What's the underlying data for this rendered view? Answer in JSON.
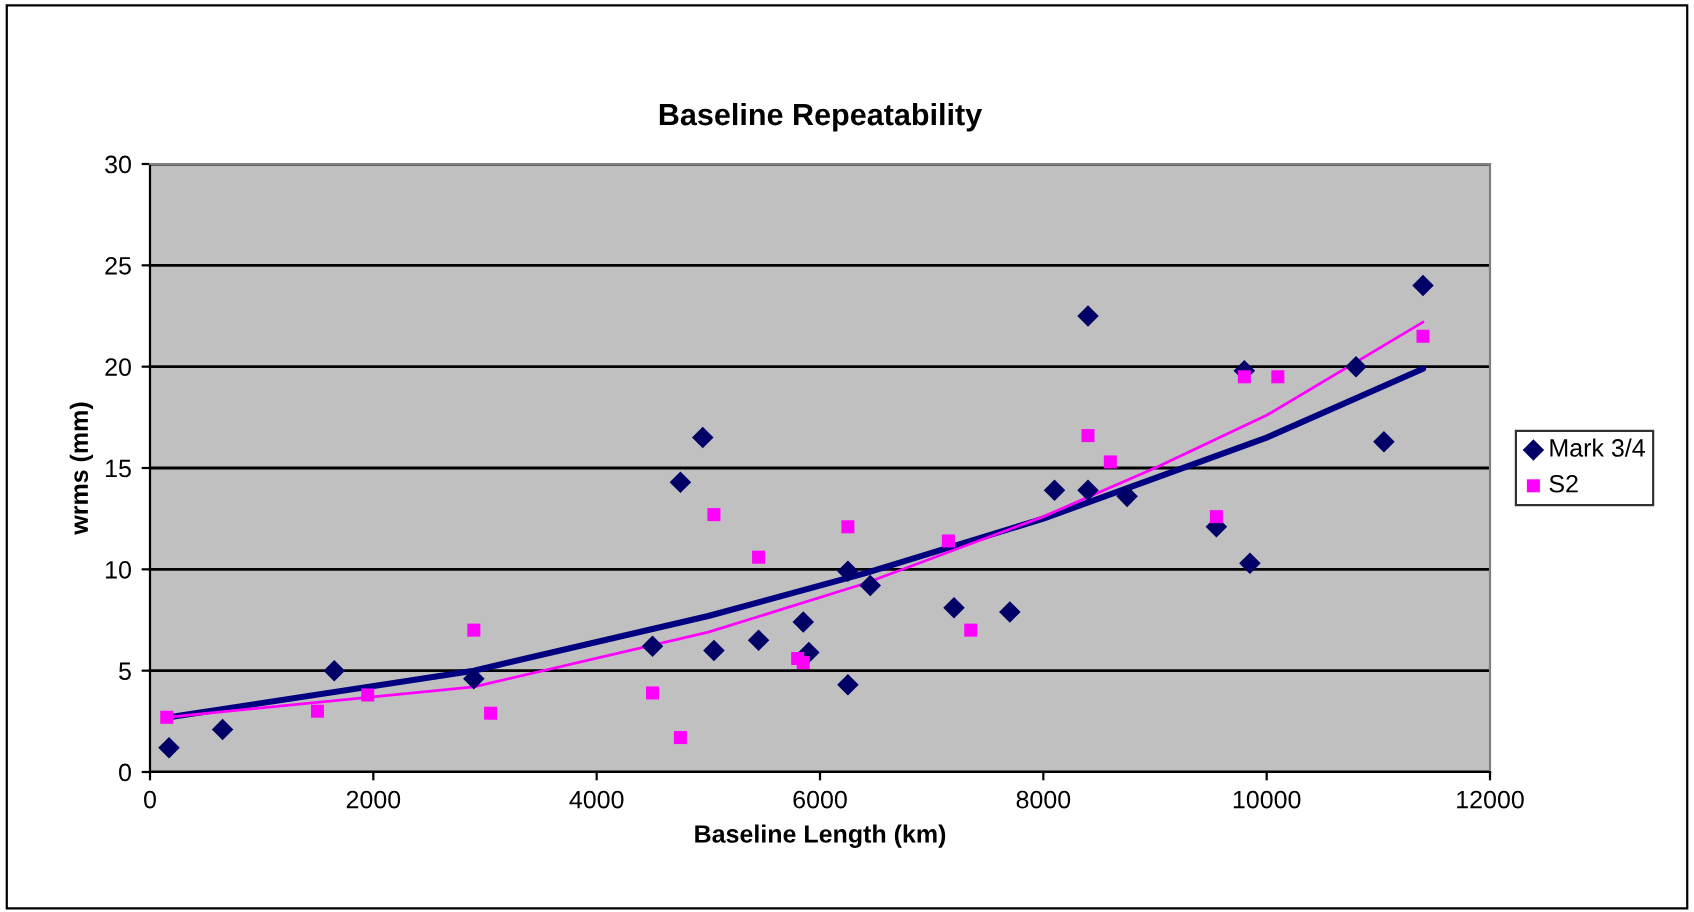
{
  "chart_data": {
    "type": "scatter",
    "title": "Baseline Repeatability",
    "xlabel": "Baseline Length (km)",
    "ylabel": "wrms (mm)",
    "xlim": [
      0,
      12000
    ],
    "xticks": [
      0,
      2000,
      4000,
      6000,
      8000,
      10000,
      12000
    ],
    "ylim": [
      0,
      30
    ],
    "yticks": [
      0,
      5,
      10,
      15,
      20,
      25,
      30
    ],
    "grid": "y",
    "legend": "right",
    "series": [
      {
        "name": "Mark 3/4",
        "color": "#000066",
        "marker": "diamond",
        "x": [
          170,
          650,
          1650,
          2900,
          4500,
          4750,
          4950,
          5050,
          5450,
          5850,
          5900,
          6250,
          6250,
          6450,
          7200,
          7700,
          8100,
          8400,
          8400,
          8750,
          9550,
          9800,
          9850,
          10800,
          11050,
          11400
        ],
        "values": [
          1.2,
          2.1,
          5.0,
          4.6,
          6.2,
          14.3,
          16.5,
          6.0,
          6.5,
          7.4,
          5.9,
          9.9,
          4.3,
          9.2,
          8.1,
          7.9,
          13.9,
          22.5,
          13.9,
          13.6,
          12.1,
          19.8,
          10.3,
          20.0,
          16.3,
          24.0
        ]
      },
      {
        "name": "S2",
        "color": "#ff00ff",
        "marker": "square",
        "x": [
          150,
          1500,
          1950,
          2900,
          3050,
          4500,
          4750,
          5050,
          5450,
          5800,
          5850,
          6250,
          7150,
          7350,
          8400,
          8600,
          9550,
          9800,
          10100,
          11400
        ],
        "values": [
          2.7,
          3.0,
          3.8,
          7.0,
          2.9,
          3.9,
          1.7,
          12.7,
          10.6,
          5.6,
          5.4,
          12.1,
          11.4,
          7.0,
          16.6,
          15.3,
          12.6,
          19.5,
          19.5,
          21.5
        ]
      },
      {
        "type": "line",
        "color": "#000080",
        "marker": "none",
        "x": [
          170,
          2900,
          5000,
          6400,
          8000,
          10000,
          11400
        ],
        "values": [
          2.7,
          5.0,
          7.7,
          9.8,
          12.5,
          16.5,
          19.9
        ]
      },
      {
        "type": "line",
        "color": "#ff00ff",
        "marker": "none",
        "x": [
          150,
          2900,
          5000,
          6400,
          8000,
          9000,
          10000,
          11400
        ],
        "values": [
          2.7,
          4.2,
          6.9,
          9.3,
          12.6,
          15.0,
          17.6,
          22.2
        ]
      }
    ]
  }
}
